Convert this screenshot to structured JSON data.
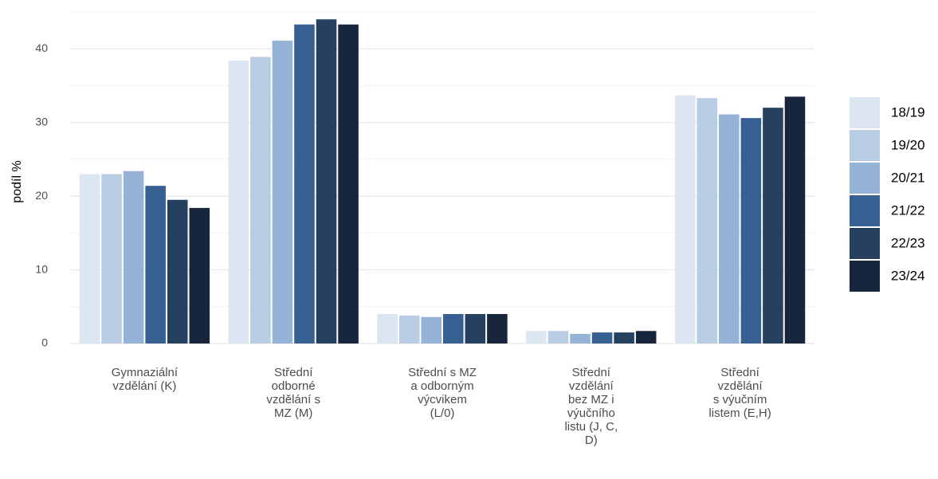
{
  "chart_data": {
    "type": "bar",
    "y_label": "podíl %",
    "categories": [
      "Gymnaziální\nvzdělání (K)",
      "Střední\nodborné\nvzdělání s\nMZ (M)",
      "Střední s MZ\na odborným\nvýcvikem\n(L/0)",
      "Střední\nvzdělání\nbez MZ i\nvýučního\nlistu (J, C,\nD)",
      "Střední\nvzdělání\ns výučním\nlistem (E,H)"
    ],
    "series": [
      {
        "name": "18/19",
        "color": "#dce6f2",
        "values": [
          23.0,
          38.4,
          4.0,
          1.7,
          33.7
        ]
      },
      {
        "name": "19/20",
        "color": "#b8cce4",
        "values": [
          23.0,
          38.9,
          3.8,
          1.7,
          33.3
        ]
      },
      {
        "name": "20/21",
        "color": "#95b3d7",
        "values": [
          23.4,
          41.1,
          3.6,
          1.3,
          31.1
        ]
      },
      {
        "name": "21/22",
        "color": "#366092",
        "values": [
          21.4,
          43.3,
          4.0,
          1.5,
          30.6
        ]
      },
      {
        "name": "22/23",
        "color": "#254061",
        "values": [
          19.5,
          44.0,
          4.0,
          1.5,
          32.0
        ]
      },
      {
        "name": "23/24",
        "color": "#17263c",
        "values": [
          18.4,
          43.3,
          4.0,
          1.7,
          33.5
        ]
      }
    ],
    "ylim": [
      0,
      45
    ],
    "yticks": [
      0,
      10,
      20,
      30,
      40
    ],
    "y_minor_ticks": [
      5,
      15,
      25,
      35,
      45
    ],
    "grid": true,
    "legend": "right"
  }
}
